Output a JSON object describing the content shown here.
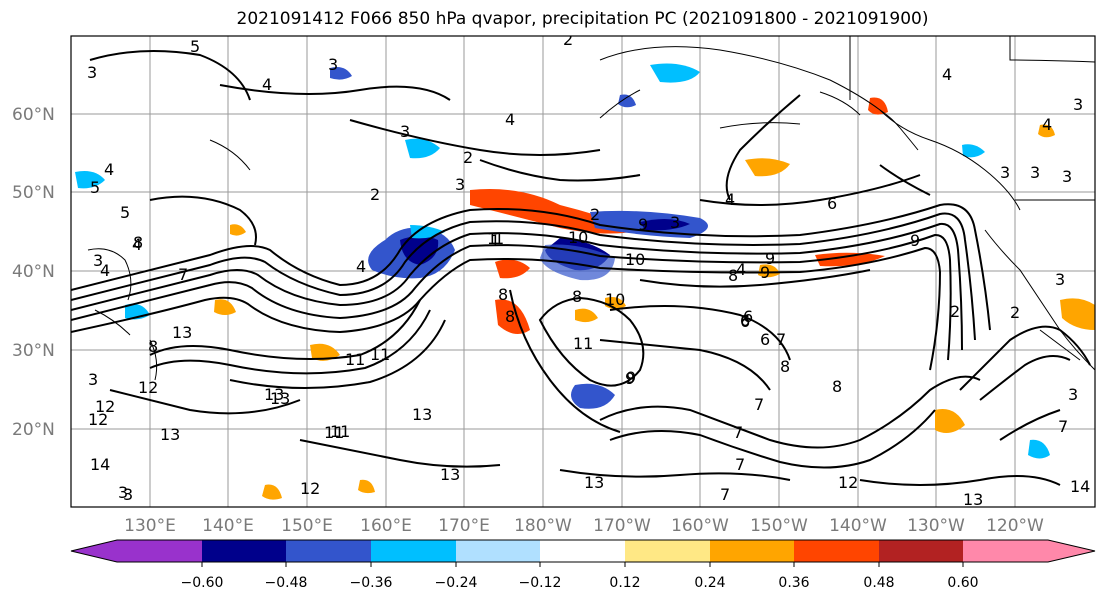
{
  "title": "2021091412 F066 850 hPa qvapor, precipitation PC (2021091800 - 2021091900)",
  "map": {
    "lat_labels": [
      "60°N",
      "50°N",
      "40°N",
      "30°N",
      "20°N"
    ],
    "lon_labels": [
      "130°E",
      "140°E",
      "150°E",
      "160°E",
      "170°E",
      "180°W",
      "170°W",
      "160°W",
      "150°W",
      "140°W",
      "130°W",
      "120°W"
    ],
    "contour_labels": [
      "5",
      "3",
      "4",
      "3",
      "4",
      "4",
      "3",
      "2",
      "2",
      "3",
      "2",
      "4",
      "5",
      "6",
      "3",
      "4",
      "2",
      "3",
      "3",
      "4",
      "3",
      "3",
      "4",
      "6",
      "2",
      "2",
      "3",
      "3",
      "3",
      "3",
      "4",
      "4",
      "5",
      "3",
      "1",
      "1",
      "6",
      "7",
      "9",
      "9",
      "10",
      "9",
      "8",
      "10",
      "8",
      "8",
      "10",
      "4",
      "9",
      "7",
      "8",
      "8",
      "7",
      "7",
      "6",
      "6",
      "7",
      "11",
      "9",
      "11",
      "11",
      "8",
      "11",
      "13",
      "13",
      "13",
      "12",
      "11",
      "12",
      "13",
      "12",
      "14",
      "13",
      "13",
      "12",
      "12",
      "13",
      "14",
      "13",
      "9",
      "8",
      "8",
      "7",
      "7",
      "3",
      "1"
    ],
    "colors": {
      "land": "#000000",
      "grid": "#9a9a9a",
      "contour": "#000000"
    }
  },
  "colorbar": {
    "ticks": [
      "−0.60",
      "−0.48",
      "−0.36",
      "−0.24",
      "−0.12",
      "0.12",
      "0.24",
      "0.36",
      "0.48",
      "0.60"
    ],
    "colors": [
      "#9932cc",
      "#00008b",
      "#3355cc",
      "#00bfff",
      "#b0e0ff",
      "#ffffff",
      "#ffe885",
      "#ffa500",
      "#ff4500",
      "#b22222",
      "#ff88aa"
    ]
  }
}
